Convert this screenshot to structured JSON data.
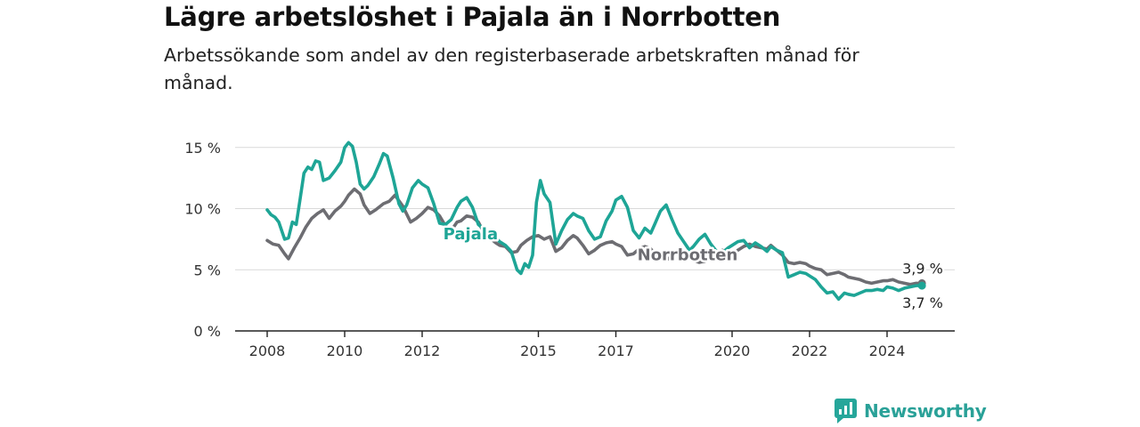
{
  "title": "Lägre arbetslöshet i Pajala än i Norrbotten",
  "subtitle": "Arbetssökande som andel av den registerbaserade arbetskraften månad för månad.",
  "brand": {
    "name": "Newsworthy",
    "color": "#26a69a",
    "icon": "newsworthy-logo-icon"
  },
  "chart_data": {
    "type": "line",
    "y_unit": "%",
    "ylim": [
      0,
      16
    ],
    "xlim": [
      2008.0,
      2025.0
    ],
    "grid": true,
    "y_ticks": [
      {
        "value": 0,
        "label": "0 %"
      },
      {
        "value": 5,
        "label": "5 %"
      },
      {
        "value": 10,
        "label": "10 %"
      },
      {
        "value": 15,
        "label": "15 %"
      }
    ],
    "x_ticks": [
      {
        "value": 2008,
        "label": "2008"
      },
      {
        "value": 2010,
        "label": "2010"
      },
      {
        "value": 2012,
        "label": "2012"
      },
      {
        "value": 2015,
        "label": "2015"
      },
      {
        "value": 2017,
        "label": "2017"
      },
      {
        "value": 2020,
        "label": "2020"
      },
      {
        "value": 2022,
        "label": "2022"
      },
      {
        "value": 2024,
        "label": "2024"
      }
    ],
    "series": [
      {
        "name": "Norrbotten",
        "color": "#6d6d72",
        "end_label": "3,9 %",
        "x": [
          2008.0,
          2008.15,
          2008.3,
          2008.45,
          2008.55,
          2008.7,
          2008.85,
          2009.0,
          2009.15,
          2009.3,
          2009.45,
          2009.6,
          2009.75,
          2009.9,
          2010.0,
          2010.1,
          2010.25,
          2010.4,
          2010.5,
          2010.65,
          2010.8,
          2011.0,
          2011.15,
          2011.3,
          2011.5,
          2011.7,
          2011.85,
          2012.0,
          2012.15,
          2012.3,
          2012.45,
          2012.6,
          2012.75,
          2012.9,
          2013.0,
          2013.15,
          2013.3,
          2013.45,
          2013.6,
          2013.75,
          2013.9,
          2014.0,
          2014.15,
          2014.3,
          2014.45,
          2014.55,
          2014.7,
          2014.85,
          2015.0,
          2015.15,
          2015.3,
          2015.45,
          2015.6,
          2015.75,
          2015.9,
          2016.0,
          2016.15,
          2016.3,
          2016.45,
          2016.6,
          2016.75,
          2016.9,
          2017.0,
          2017.15,
          2017.3,
          2017.45,
          2017.6,
          2017.75,
          2017.9,
          2018.0,
          2018.15,
          2018.3,
          2018.45,
          2018.6,
          2018.75,
          2018.9,
          2019.0,
          2019.15,
          2019.3,
          2019.45,
          2019.6,
          2019.75,
          2019.9,
          2020.0,
          2020.15,
          2020.3,
          2020.45,
          2020.6,
          2020.75,
          2020.9,
          2021.0,
          2021.15,
          2021.3,
          2021.45,
          2021.6,
          2021.75,
          2021.9,
          2022.0,
          2022.15,
          2022.3,
          2022.45,
          2022.6,
          2022.75,
          2022.9,
          2023.0,
          2023.15,
          2023.3,
          2023.45,
          2023.6,
          2023.75,
          2023.9,
          2024.0,
          2024.15,
          2024.3,
          2024.45,
          2024.6,
          2024.75,
          2024.9
        ],
        "y": [
          7.4,
          7.1,
          7.0,
          6.3,
          5.9,
          6.8,
          7.6,
          8.5,
          9.2,
          9.6,
          9.9,
          9.2,
          9.8,
          10.2,
          10.6,
          11.1,
          11.6,
          11.2,
          10.3,
          9.6,
          9.9,
          10.4,
          10.6,
          11.1,
          10.2,
          8.9,
          9.2,
          9.6,
          10.1,
          9.9,
          9.4,
          8.6,
          8.2,
          8.9,
          9.0,
          9.4,
          9.3,
          8.9,
          8.0,
          7.6,
          7.2,
          7.0,
          6.9,
          6.4,
          6.5,
          7.0,
          7.4,
          7.7,
          7.8,
          7.5,
          7.7,
          6.5,
          6.8,
          7.4,
          7.8,
          7.6,
          7.0,
          6.3,
          6.6,
          7.0,
          7.2,
          7.3,
          7.1,
          6.9,
          6.2,
          6.3,
          6.7,
          6.9,
          6.7,
          6.3,
          5.9,
          5.8,
          6.1,
          6.4,
          6.3,
          6.0,
          5.8,
          5.6,
          5.7,
          6.0,
          6.3,
          6.6,
          6.4,
          6.1,
          6.6,
          6.9,
          7.1,
          6.9,
          6.8,
          6.7,
          7.0,
          6.6,
          6.2,
          5.6,
          5.5,
          5.6,
          5.5,
          5.3,
          5.1,
          5.0,
          4.6,
          4.7,
          4.8,
          4.6,
          4.4,
          4.3,
          4.2,
          4.0,
          3.9,
          4.0,
          4.1,
          4.1,
          4.2,
          4.0,
          3.9,
          3.8,
          3.9,
          3.9
        ]
      },
      {
        "name": "Pajala",
        "color": "#1ea596",
        "end_label": "3,7 %",
        "x": [
          2008.0,
          2008.1,
          2008.2,
          2008.3,
          2008.45,
          2008.55,
          2008.65,
          2008.75,
          2008.85,
          2008.95,
          2009.05,
          2009.15,
          2009.25,
          2009.35,
          2009.45,
          2009.6,
          2009.75,
          2009.9,
          2010.0,
          2010.1,
          2010.2,
          2010.3,
          2010.4,
          2010.5,
          2010.6,
          2010.75,
          2010.9,
          2011.0,
          2011.1,
          2011.25,
          2011.4,
          2011.5,
          2011.6,
          2011.75,
          2011.9,
          2012.0,
          2012.15,
          2012.3,
          2012.45,
          2012.6,
          2012.75,
          2012.9,
          2013.0,
          2013.15,
          2013.3,
          2013.45,
          2013.6,
          2013.75,
          2013.9,
          2014.0,
          2014.15,
          2014.3,
          2014.45,
          2014.55,
          2014.65,
          2014.75,
          2014.85,
          2014.95,
          2015.05,
          2015.15,
          2015.3,
          2015.45,
          2015.6,
          2015.75,
          2015.9,
          2016.0,
          2016.15,
          2016.3,
          2016.45,
          2016.6,
          2016.75,
          2016.9,
          2017.0,
          2017.15,
          2017.3,
          2017.45,
          2017.6,
          2017.75,
          2017.9,
          2018.0,
          2018.15,
          2018.3,
          2018.45,
          2018.6,
          2018.75,
          2018.9,
          2019.0,
          2019.15,
          2019.3,
          2019.45,
          2019.6,
          2019.75,
          2019.9,
          2020.0,
          2020.15,
          2020.3,
          2020.45,
          2020.6,
          2020.75,
          2020.9,
          2021.0,
          2021.15,
          2021.3,
          2021.45,
          2021.6,
          2021.75,
          2021.9,
          2022.0,
          2022.15,
          2022.3,
          2022.45,
          2022.6,
          2022.75,
          2022.9,
          2023.0,
          2023.15,
          2023.3,
          2023.45,
          2023.6,
          2023.75,
          2023.9,
          2024.0,
          2024.15,
          2024.3,
          2024.45,
          2024.6,
          2024.75,
          2024.9
        ],
        "y": [
          9.9,
          9.5,
          9.3,
          8.9,
          7.5,
          7.6,
          8.9,
          8.7,
          10.8,
          12.9,
          13.4,
          13.2,
          13.9,
          13.8,
          12.3,
          12.5,
          13.1,
          13.8,
          15.0,
          15.4,
          15.1,
          13.8,
          12.0,
          11.6,
          11.9,
          12.6,
          13.7,
          14.5,
          14.3,
          12.5,
          10.4,
          9.8,
          10.3,
          11.7,
          12.3,
          12.0,
          11.7,
          10.4,
          8.8,
          8.7,
          9.1,
          10.1,
          10.6,
          10.9,
          10.1,
          8.7,
          8.3,
          7.9,
          7.6,
          7.3,
          7.0,
          6.5,
          5.0,
          4.7,
          5.5,
          5.2,
          6.2,
          10.5,
          12.3,
          11.2,
          10.5,
          7.1,
          8.2,
          9.1,
          9.6,
          9.4,
          9.2,
          8.2,
          7.5,
          7.7,
          9.0,
          9.8,
          10.7,
          11.0,
          10.1,
          8.2,
          7.6,
          8.4,
          8.0,
          8.7,
          9.8,
          10.3,
          9.1,
          8.0,
          7.3,
          6.6,
          6.9,
          7.5,
          7.9,
          7.1,
          6.5,
          6.4,
          6.8,
          7.0,
          7.3,
          7.4,
          6.8,
          7.2,
          6.9,
          6.5,
          6.9,
          6.6,
          6.4,
          4.4,
          4.6,
          4.8,
          4.7,
          4.5,
          4.2,
          3.6,
          3.1,
          3.2,
          2.6,
          3.1,
          3.0,
          2.9,
          3.1,
          3.3,
          3.3,
          3.4,
          3.3,
          3.6,
          3.5,
          3.3,
          3.5,
          3.6,
          3.7,
          3.7
        ]
      }
    ],
    "annotations": [
      {
        "text": "Pajala",
        "series": "Pajala"
      },
      {
        "text": "Norrbotten",
        "series": "Norrbotten"
      }
    ]
  }
}
